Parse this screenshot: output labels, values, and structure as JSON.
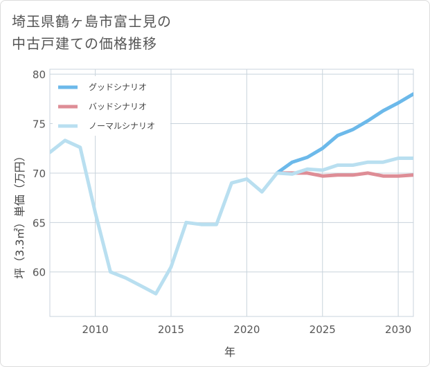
{
  "title_lines": [
    "埼玉県鶴ヶ島市富士見の",
    "中古戸建ての価格推移"
  ],
  "chart_data": {
    "type": "line",
    "xlabel": "年",
    "ylabel": "坪（3.3㎡）単価（万円）",
    "xlim": [
      2007,
      2031
    ],
    "ylim": [
      55.5,
      80.5
    ],
    "x_ticks": [
      2010,
      2015,
      2020,
      2025,
      2030
    ],
    "y_ticks": [
      60,
      65,
      70,
      75,
      80
    ],
    "grid": true,
    "legend_position": "top-left",
    "series": [
      {
        "name": "グッドシナリオ",
        "color": "#6cb9ea",
        "x": [
          2022,
          2023,
          2024,
          2025,
          2026,
          2027,
          2028,
          2029,
          2030,
          2031
        ],
        "y": [
          70.0,
          71.1,
          71.6,
          72.5,
          73.8,
          74.4,
          75.3,
          76.3,
          77.1,
          78.0
        ]
      },
      {
        "name": "バッドシナリオ",
        "color": "#de8d96",
        "x": [
          2022,
          2023,
          2024,
          2025,
          2026,
          2027,
          2028,
          2029,
          2030,
          2031
        ],
        "y": [
          70.0,
          70.0,
          70.0,
          69.7,
          69.8,
          69.8,
          70.0,
          69.7,
          69.7,
          69.8
        ]
      },
      {
        "name": "ノーマルシナリオ",
        "color": "#b9dff0",
        "x": [
          2007,
          2008,
          2009,
          2010,
          2011,
          2012,
          2013,
          2014,
          2015,
          2016,
          2017,
          2018,
          2019,
          2020,
          2021,
          2022,
          2023,
          2024,
          2025,
          2026,
          2027,
          2028,
          2029,
          2030,
          2031
        ],
        "y": [
          72.1,
          73.3,
          72.6,
          66.0,
          60.0,
          59.4,
          58.6,
          57.8,
          60.5,
          65.0,
          64.8,
          64.8,
          69.0,
          69.4,
          68.1,
          70.0,
          69.9,
          70.4,
          70.3,
          70.8,
          70.8,
          71.1,
          71.1,
          71.5,
          71.5
        ]
      }
    ]
  }
}
